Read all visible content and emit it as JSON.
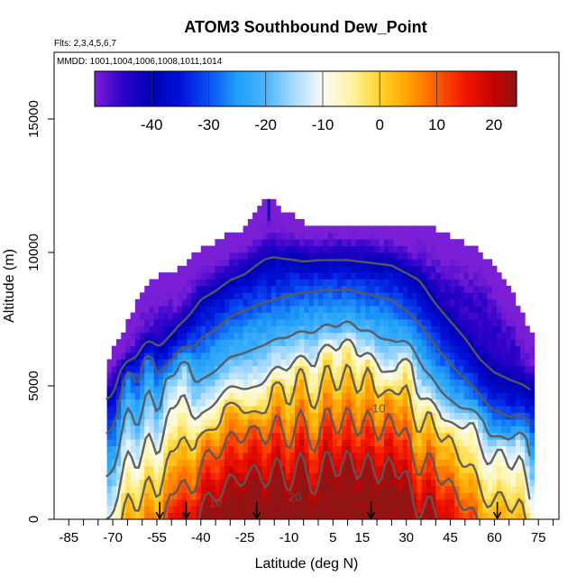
{
  "chart_data": {
    "type": "heatmap",
    "title": "ATOM3 Southbound Dew_Point",
    "flights_label": "Flts: 2,3,4,5,6,7",
    "dates_label": "MMDD: 1001,1004,1006,1008,1011,1014",
    "xlabel": "Latitude (deg N)",
    "ylabel": "Altitude (m)",
    "xlim": [
      -90,
      82
    ],
    "ylim": [
      0,
      17500
    ],
    "x_ticks": [
      -85,
      -80,
      -75,
      -70,
      -65,
      -60,
      -55,
      -50,
      -45,
      -40,
      -35,
      -30,
      -25,
      -20,
      -15,
      -10,
      -5,
      0,
      5,
      10,
      15,
      20,
      25,
      30,
      35,
      40,
      45,
      50,
      55,
      60,
      65,
      70,
      75,
      80
    ],
    "x_tick_labels": [
      "-85",
      "-70",
      "-55",
      "-40",
      "-25",
      "-10",
      "5",
      "15",
      "30",
      "45",
      "60",
      "75"
    ],
    "x_tick_label_values": [
      -85,
      -70,
      -55,
      -40,
      -25,
      -10,
      5,
      15,
      30,
      45,
      60,
      75
    ],
    "y_ticks": [
      0,
      5000,
      10000,
      15000
    ],
    "y_tick_labels": [
      "0",
      "5000",
      "10000",
      "15000"
    ],
    "colorbar": {
      "range": [
        -50,
        24
      ],
      "tick_values": [
        -40,
        -30,
        -20,
        -10,
        0,
        10,
        20
      ],
      "tick_labels": [
        "-40",
        "-30",
        "-20",
        "-10",
        "0",
        "10",
        "20"
      ],
      "stops": [
        {
          "v": -50,
          "c": "#7a1fd6"
        },
        {
          "v": -45,
          "c": "#2c00c9"
        },
        {
          "v": -40,
          "c": "#0000b4"
        },
        {
          "v": -35,
          "c": "#0010d8"
        },
        {
          "v": -30,
          "c": "#0b50f3"
        },
        {
          "v": -25,
          "c": "#1f9ef7"
        },
        {
          "v": -20,
          "c": "#4ab4ff"
        },
        {
          "v": -15,
          "c": "#a8dbff"
        },
        {
          "v": -10,
          "c": "#f8fbf4"
        },
        {
          "v": -5,
          "c": "#fff4a6"
        },
        {
          "v": 0,
          "c": "#ffd22a"
        },
        {
          "v": 5,
          "c": "#ffa200"
        },
        {
          "v": 10,
          "c": "#ff5a00"
        },
        {
          "v": 15,
          "c": "#f21600"
        },
        {
          "v": 20,
          "c": "#c60000"
        },
        {
          "v": 24,
          "c": "#8f1515"
        }
      ]
    },
    "contour_levels": [
      -40,
      -30,
      -20,
      -10,
      0,
      10,
      20
    ],
    "contour_labels": [
      {
        "text": "-10",
        "lat": 20,
        "alt": 4000
      },
      {
        "text": "10",
        "lat": -35,
        "alt": 450
      },
      {
        "text": "20",
        "lat": -8,
        "alt": 700
      }
    ],
    "flight_arrows_lat": [
      -54,
      -45,
      -21,
      18,
      61
    ],
    "profiles": [
      {
        "lat": -71,
        "top": 6000
      },
      {
        "lat": -66,
        "top": 7000
      },
      {
        "lat": -60,
        "top": 8500
      },
      {
        "lat": -55,
        "top": 9000
      },
      {
        "lat": -48,
        "top": 9200
      },
      {
        "lat": -40,
        "top": 10000
      },
      {
        "lat": -32,
        "top": 10500
      },
      {
        "lat": -25,
        "top": 10800
      },
      {
        "lat": -20,
        "top": 11500
      },
      {
        "lat": -17,
        "top": 12000
      },
      {
        "lat": -12,
        "top": 11500
      },
      {
        "lat": -5,
        "top": 11000
      },
      {
        "lat": 5,
        "top": 11000
      },
      {
        "lat": 15,
        "top": 11000
      },
      {
        "lat": 25,
        "top": 11000
      },
      {
        "lat": 35,
        "top": 11000
      },
      {
        "lat": 45,
        "top": 10500
      },
      {
        "lat": 55,
        "top": 10000
      },
      {
        "lat": 62,
        "top": 9000
      },
      {
        "lat": 68,
        "top": 8000
      },
      {
        "lat": 72,
        "top": 7000
      }
    ],
    "surface_dew_point": [
      {
        "lat": -72,
        "v": -10
      },
      {
        "lat": -66,
        "v": -8
      },
      {
        "lat": -60,
        "v": -4
      },
      {
        "lat": -55,
        "v": -2
      },
      {
        "lat": -50,
        "v": 2
      },
      {
        "lat": -45,
        "v": 6
      },
      {
        "lat": -40,
        "v": 12
      },
      {
        "lat": -35,
        "v": 14
      },
      {
        "lat": -30,
        "v": 17
      },
      {
        "lat": -20,
        "v": 20
      },
      {
        "lat": -10,
        "v": 22
      },
      {
        "lat": 0,
        "v": 23
      },
      {
        "lat": 10,
        "v": 23
      },
      {
        "lat": 18,
        "v": 22
      },
      {
        "lat": 25,
        "v": 21
      },
      {
        "lat": 30,
        "v": 18
      },
      {
        "lat": 35,
        "v": 15
      },
      {
        "lat": 40,
        "v": 10
      },
      {
        "lat": 45,
        "v": 6
      },
      {
        "lat": 50,
        "v": 2
      },
      {
        "lat": 55,
        "v": -3
      },
      {
        "lat": 60,
        "v": -6
      },
      {
        "lat": 66,
        "v": -8
      },
      {
        "lat": 72,
        "v": -10
      }
    ],
    "moisture_plumes": [
      {
        "lat": -65,
        "top": 5500,
        "width": 3
      },
      {
        "lat": -58,
        "top": 6000,
        "width": 3
      },
      {
        "lat": -51,
        "top": 5200,
        "width": 3
      },
      {
        "lat": -46,
        "top": 5800,
        "width": 3
      },
      {
        "lat": -38,
        "top": 3000,
        "width": 4
      },
      {
        "lat": -30,
        "top": 4200,
        "width": 4
      },
      {
        "lat": -22,
        "top": 3500,
        "width": 4
      },
      {
        "lat": -14,
        "top": 5000,
        "width": 3
      },
      {
        "lat": -6,
        "top": 5600,
        "width": 3
      },
      {
        "lat": 3,
        "top": 6200,
        "width": 3
      },
      {
        "lat": 10,
        "top": 6500,
        "width": 3
      },
      {
        "lat": 17,
        "top": 5800,
        "width": 3
      },
      {
        "lat": 24,
        "top": 4600,
        "width": 3
      },
      {
        "lat": 30,
        "top": 5800,
        "width": 3
      },
      {
        "lat": 38,
        "top": 4000,
        "width": 3
      },
      {
        "lat": 45,
        "top": 3200,
        "width": 4
      },
      {
        "lat": 53,
        "top": 3600,
        "width": 4
      },
      {
        "lat": 62,
        "top": 2600,
        "width": 4
      },
      {
        "lat": 69,
        "top": 3000,
        "width": 3
      }
    ]
  }
}
